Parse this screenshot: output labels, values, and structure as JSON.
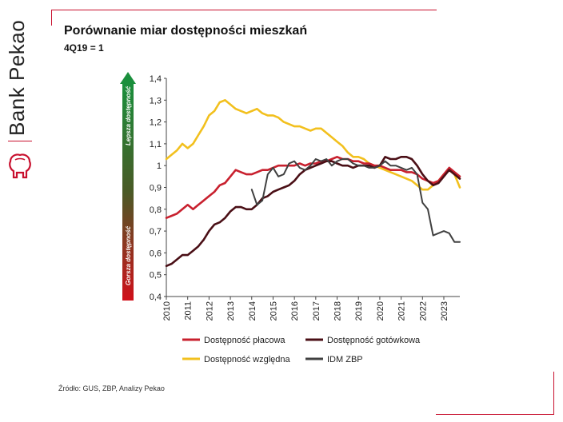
{
  "brand": {
    "name": "Bank Pekao"
  },
  "header": {
    "title": "Porównanie miar dostępności mieszkań",
    "subtitle": "4Q19 = 1"
  },
  "footer": {
    "source": "Źródło: GUS, ZBP, Analizy Pekao"
  },
  "colors": {
    "accent": "#c8102e",
    "placowa": "#c8202e",
    "gotowkowa": "#4a0f16",
    "wzgledna": "#f2c01e",
    "idm": "#404040"
  },
  "chart_data": {
    "type": "line",
    "title": "Porównanie miar dostępności mieszkań",
    "subtitle": "4Q19 = 1",
    "xlim": [
      2010.0,
      2023.75
    ],
    "ylim": [
      0.4,
      1.4
    ],
    "x_ticks": [
      "2010",
      "2011",
      "2012",
      "2013",
      "2014",
      "2015",
      "2016",
      "2017",
      "2018",
      "2019",
      "2020",
      "2021",
      "2022",
      "2023"
    ],
    "y_ticks": [
      "0,4",
      "0,5",
      "0,6",
      "0,7",
      "0,8",
      "0,9",
      "1",
      "1,1",
      "1,2",
      "1,3",
      "1,4"
    ],
    "grid": false,
    "legend_position": "bottom",
    "arrow_labels": {
      "top": "Lepsza dostępność",
      "bottom": "Gorsza dostępność"
    },
    "series": [
      {
        "name": "Dostępność płacowa",
        "color": "#c8202e",
        "x": [
          2010.0,
          2010.25,
          2010.5,
          2010.75,
          2011.0,
          2011.25,
          2011.5,
          2011.75,
          2012.0,
          2012.25,
          2012.5,
          2012.75,
          2013.0,
          2013.25,
          2013.5,
          2013.75,
          2014.0,
          2014.25,
          2014.5,
          2014.75,
          2015.0,
          2015.25,
          2015.5,
          2015.75,
          2016.0,
          2016.25,
          2016.5,
          2016.75,
          2017.0,
          2017.25,
          2017.5,
          2017.75,
          2018.0,
          2018.25,
          2018.5,
          2018.75,
          2019.0,
          2019.25,
          2019.5,
          2019.75,
          2020.0,
          2020.25,
          2020.5,
          2020.75,
          2021.0,
          2021.25,
          2021.5,
          2021.75,
          2022.0,
          2022.25,
          2022.5,
          2022.75,
          2023.0,
          2023.25,
          2023.5,
          2023.75
        ],
        "values": [
          0.76,
          0.77,
          0.78,
          0.8,
          0.82,
          0.8,
          0.82,
          0.84,
          0.86,
          0.88,
          0.91,
          0.92,
          0.95,
          0.98,
          0.97,
          0.96,
          0.96,
          0.97,
          0.98,
          0.98,
          0.99,
          1.0,
          1.0,
          1.0,
          1.0,
          1.01,
          1.0,
          1.01,
          1.01,
          1.02,
          1.02,
          1.03,
          1.04,
          1.03,
          1.03,
          1.02,
          1.02,
          1.01,
          1.01,
          1.0,
          1.0,
          0.99,
          0.98,
          0.98,
          0.98,
          0.97,
          0.97,
          0.96,
          0.94,
          0.93,
          0.92,
          0.93,
          0.96,
          0.99,
          0.97,
          0.95
        ]
      },
      {
        "name": "Dostępność gotówkowa",
        "color": "#4a0f16",
        "x": [
          2010.0,
          2010.25,
          2010.5,
          2010.75,
          2011.0,
          2011.25,
          2011.5,
          2011.75,
          2012.0,
          2012.25,
          2012.5,
          2012.75,
          2013.0,
          2013.25,
          2013.5,
          2013.75,
          2014.0,
          2014.25,
          2014.5,
          2014.75,
          2015.0,
          2015.25,
          2015.5,
          2015.75,
          2016.0,
          2016.25,
          2016.5,
          2016.75,
          2017.0,
          2017.25,
          2017.5,
          2017.75,
          2018.0,
          2018.25,
          2018.5,
          2018.75,
          2019.0,
          2019.25,
          2019.5,
          2019.75,
          2020.0,
          2020.25,
          2020.5,
          2020.75,
          2021.0,
          2021.25,
          2021.5,
          2021.75,
          2022.0,
          2022.25,
          2022.5,
          2022.75,
          2023.0,
          2023.25,
          2023.5,
          2023.75
        ],
        "values": [
          0.54,
          0.55,
          0.57,
          0.59,
          0.59,
          0.61,
          0.63,
          0.66,
          0.7,
          0.73,
          0.74,
          0.76,
          0.79,
          0.81,
          0.81,
          0.8,
          0.8,
          0.82,
          0.85,
          0.86,
          0.88,
          0.89,
          0.9,
          0.91,
          0.93,
          0.96,
          0.98,
          0.99,
          1.0,
          1.01,
          1.02,
          1.02,
          1.01,
          1.0,
          1.0,
          0.99,
          1.0,
          1.0,
          1.0,
          0.99,
          1.0,
          1.04,
          1.03,
          1.03,
          1.04,
          1.04,
          1.03,
          1.0,
          0.96,
          0.93,
          0.91,
          0.92,
          0.95,
          0.98,
          0.96,
          0.94
        ]
      },
      {
        "name": "Dostępność względna",
        "color": "#f2c01e",
        "x": [
          2010.0,
          2010.25,
          2010.5,
          2010.75,
          2011.0,
          2011.25,
          2011.5,
          2011.75,
          2012.0,
          2012.25,
          2012.5,
          2012.75,
          2013.0,
          2013.25,
          2013.5,
          2013.75,
          2014.0,
          2014.25,
          2014.5,
          2014.75,
          2015.0,
          2015.25,
          2015.5,
          2015.75,
          2016.0,
          2016.25,
          2016.5,
          2016.75,
          2017.0,
          2017.25,
          2017.5,
          2017.75,
          2018.0,
          2018.25,
          2018.5,
          2018.75,
          2019.0,
          2019.25,
          2019.5,
          2019.75,
          2020.0,
          2020.25,
          2020.5,
          2020.75,
          2021.0,
          2021.25,
          2021.5,
          2021.75,
          2022.0,
          2022.25,
          2022.5,
          2022.75,
          2023.0,
          2023.25,
          2023.5,
          2023.75
        ],
        "values": [
          1.03,
          1.05,
          1.07,
          1.1,
          1.08,
          1.1,
          1.14,
          1.18,
          1.23,
          1.25,
          1.29,
          1.3,
          1.28,
          1.26,
          1.25,
          1.24,
          1.25,
          1.26,
          1.24,
          1.23,
          1.23,
          1.22,
          1.2,
          1.19,
          1.18,
          1.18,
          1.17,
          1.16,
          1.17,
          1.17,
          1.15,
          1.13,
          1.11,
          1.09,
          1.06,
          1.04,
          1.04,
          1.03,
          1.01,
          1.0,
          0.99,
          0.98,
          0.97,
          0.96,
          0.95,
          0.94,
          0.93,
          0.91,
          0.89,
          0.89,
          0.91,
          0.93,
          0.96,
          0.98,
          0.96,
          0.9
        ]
      },
      {
        "name": "IDM ZBP",
        "color": "#404040",
        "x": [
          2014.0,
          2014.25,
          2014.5,
          2014.75,
          2015.0,
          2015.25,
          2015.5,
          2015.75,
          2016.0,
          2016.25,
          2016.5,
          2016.75,
          2017.0,
          2017.25,
          2017.5,
          2017.75,
          2018.0,
          2018.25,
          2018.5,
          2018.75,
          2019.0,
          2019.25,
          2019.5,
          2019.75,
          2020.0,
          2020.25,
          2020.5,
          2020.75,
          2021.0,
          2021.25,
          2021.5,
          2021.75,
          2022.0,
          2022.25,
          2022.5,
          2022.75,
          2023.0,
          2023.25,
          2023.5,
          2023.75
        ],
        "values": [
          0.89,
          0.82,
          0.84,
          0.96,
          0.99,
          0.95,
          0.96,
          1.01,
          1.02,
          0.99,
          0.98,
          1.0,
          1.03,
          1.02,
          1.03,
          1.0,
          1.02,
          1.03,
          1.03,
          1.01,
          1.0,
          1.0,
          0.99,
          0.99,
          1.0,
          1.02,
          1.0,
          1.0,
          0.99,
          0.98,
          0.99,
          0.96,
          0.83,
          0.8,
          0.68,
          0.69,
          0.7,
          0.69,
          0.65,
          0.65
        ]
      }
    ]
  }
}
